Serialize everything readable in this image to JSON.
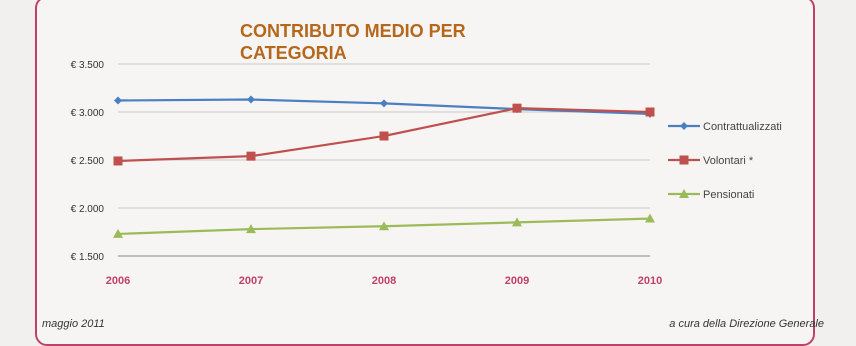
{
  "chart_data": {
    "type": "line",
    "title": "CONTRIBUTO MEDIO PER\nCATEGORIA",
    "x": [
      "2006",
      "2007",
      "2008",
      "2009",
      "2010"
    ],
    "y_ticks": [
      "€ 1.500",
      "€ 2.000",
      "€ 2.500",
      "€ 3.000",
      "€ 3.500"
    ],
    "ylim": [
      1500,
      3500
    ],
    "grid": true,
    "legend_position": "right",
    "series": [
      {
        "name": "Contrattualizzati",
        "color": "#4a7fc1",
        "marker": "diamond",
        "values": [
          3120,
          3130,
          3090,
          3030,
          2980
        ]
      },
      {
        "name": "Volontari *",
        "color": "#c0504d",
        "marker": "square",
        "values": [
          2490,
          2540,
          2750,
          3040,
          3000
        ]
      },
      {
        "name": "Pensionati",
        "color": "#9bbb59",
        "marker": "triangle",
        "values": [
          1730,
          1780,
          1810,
          1850,
          1890
        ]
      }
    ]
  },
  "footer": {
    "left": "maggio 2011",
    "right": "a cura della Direzione Generale"
  }
}
